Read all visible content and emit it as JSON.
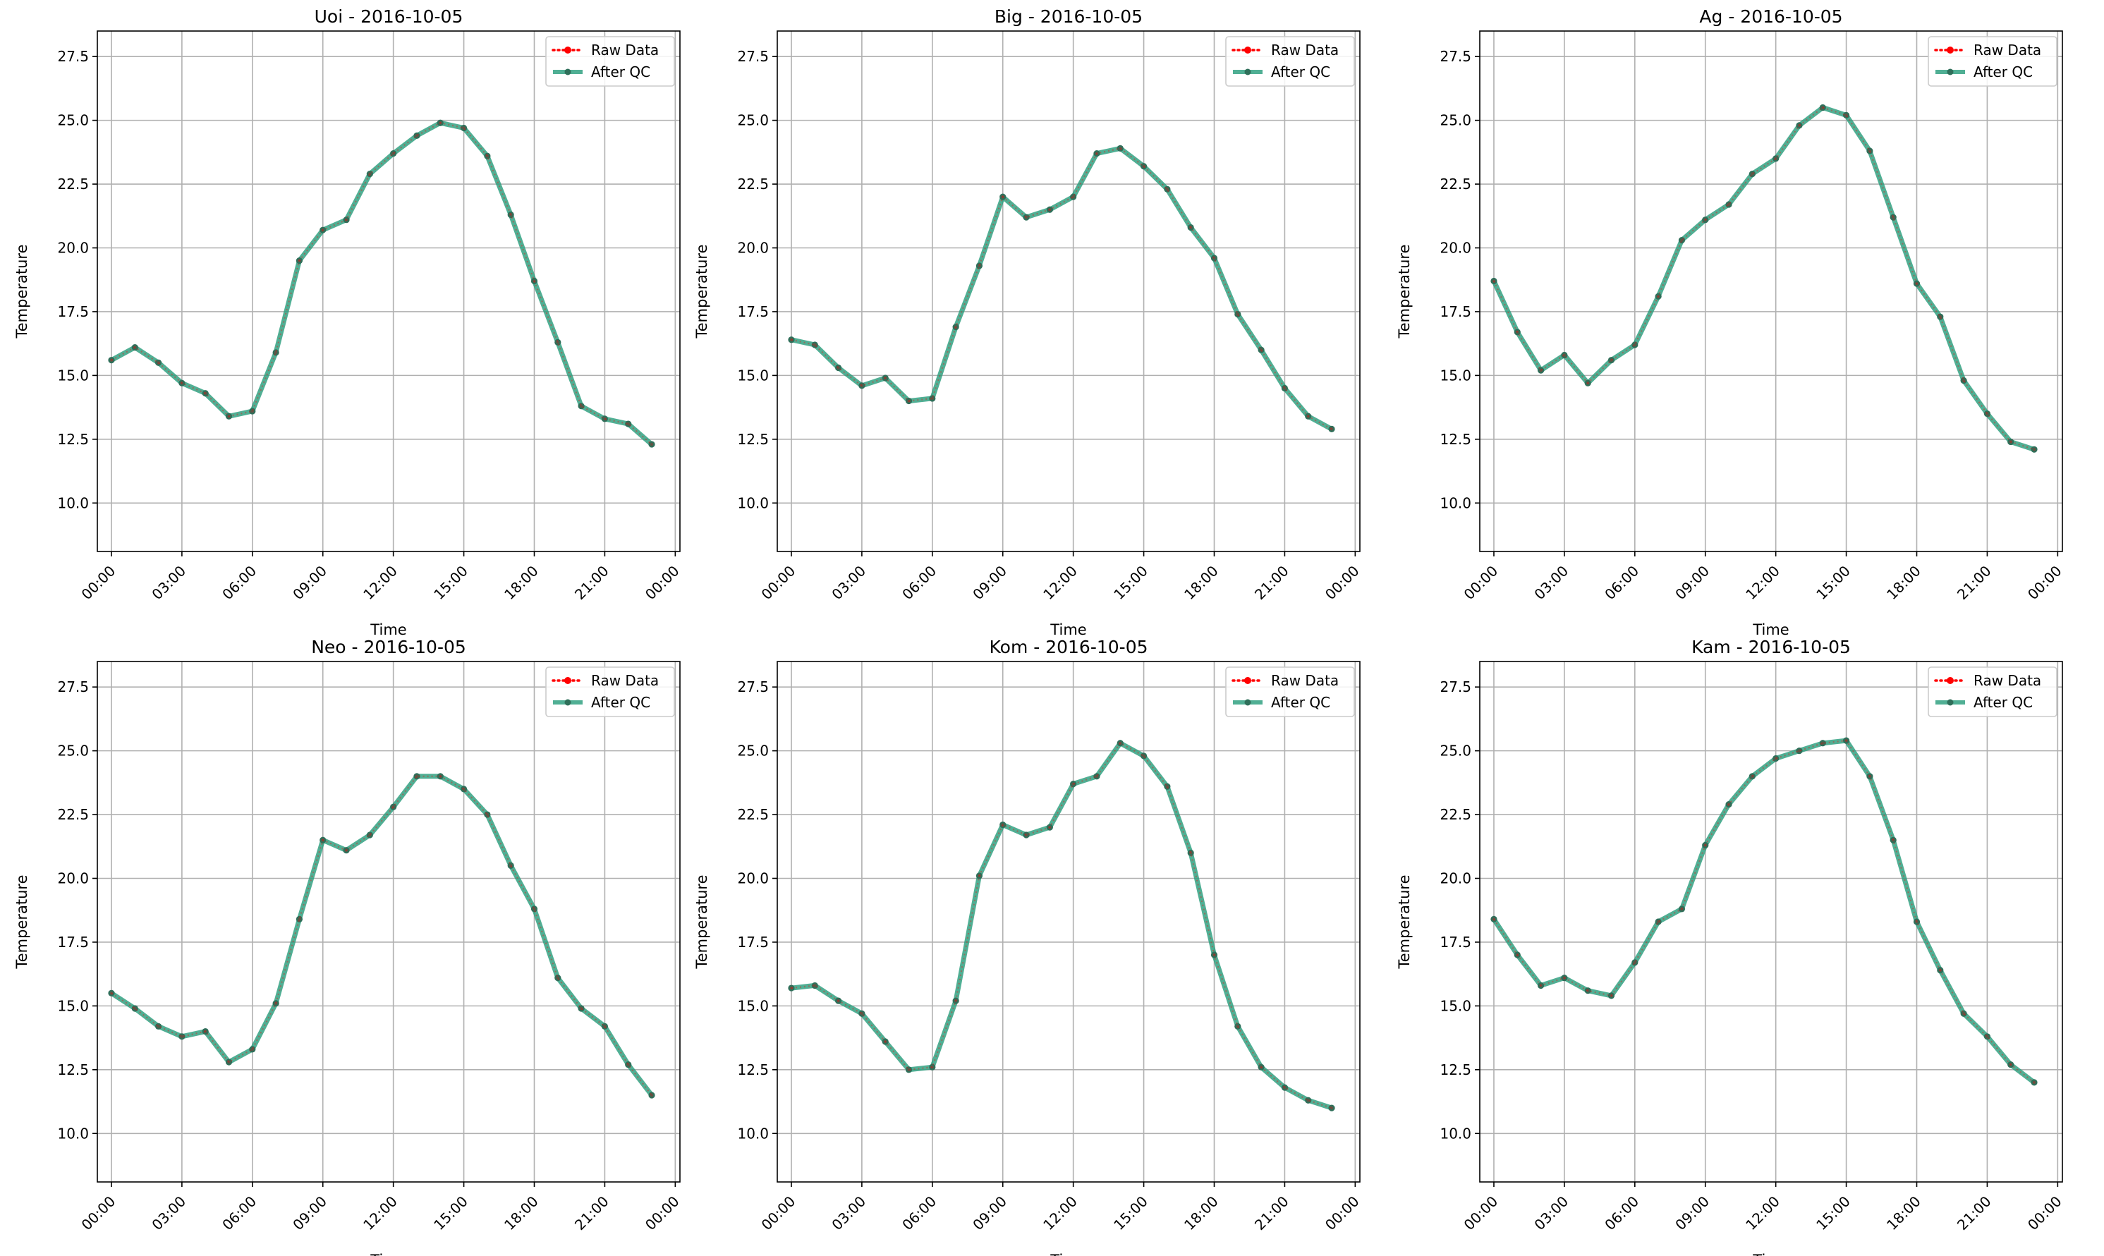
{
  "colors": {
    "raw": "#ff0000",
    "qc": "#2a9d7c",
    "qc_marker": "#2f6f5a",
    "grid": "#b0b0b0"
  },
  "chart_data": [
    {
      "type": "line",
      "title": "Uoi - 2016-10-05",
      "xlabel": "Time",
      "ylabel": "Temperature",
      "x": [
        "00:00",
        "01:00",
        "02:00",
        "03:00",
        "04:00",
        "05:00",
        "06:00",
        "07:00",
        "08:00",
        "09:00",
        "10:00",
        "11:00",
        "12:00",
        "13:00",
        "14:00",
        "15:00",
        "16:00",
        "17:00",
        "18:00",
        "19:00",
        "20:00",
        "21:00",
        "22:00",
        "23:00"
      ],
      "x_ticks": [
        "00:00",
        "03:00",
        "06:00",
        "09:00",
        "12:00",
        "15:00",
        "18:00",
        "21:00",
        "00:00"
      ],
      "y_ticks": [
        "10.0",
        "12.5",
        "15.0",
        "17.5",
        "20.0",
        "22.5",
        "25.0",
        "27.5"
      ],
      "xlim": [
        -0.6,
        24.2
      ],
      "ylim": [
        8.1,
        28.5
      ],
      "grid": true,
      "legend_position": "top-right",
      "series": [
        {
          "name": "Raw Data",
          "values": [
            15.6,
            16.1,
            15.5,
            14.7,
            14.3,
            13.4,
            13.6,
            15.9,
            19.5,
            20.7,
            21.1,
            22.9,
            23.7,
            24.4,
            24.9,
            24.7,
            23.6,
            21.3,
            18.7,
            16.3,
            13.8,
            13.3,
            13.1,
            12.3
          ]
        },
        {
          "name": "After QC",
          "values": [
            15.6,
            16.1,
            15.5,
            14.7,
            14.3,
            13.4,
            13.6,
            15.9,
            19.5,
            20.7,
            21.1,
            22.9,
            23.7,
            24.4,
            24.9,
            24.7,
            23.6,
            21.3,
            18.7,
            16.3,
            13.8,
            13.3,
            13.1,
            12.3
          ]
        }
      ]
    },
    {
      "type": "line",
      "title": "Big - 2016-10-05",
      "xlabel": "Time",
      "ylabel": "Temperature",
      "x": [
        "00:00",
        "01:00",
        "02:00",
        "03:00",
        "04:00",
        "05:00",
        "06:00",
        "07:00",
        "08:00",
        "09:00",
        "10:00",
        "11:00",
        "12:00",
        "13:00",
        "14:00",
        "15:00",
        "16:00",
        "17:00",
        "18:00",
        "19:00",
        "20:00",
        "21:00",
        "22:00",
        "23:00"
      ],
      "x_ticks": [
        "00:00",
        "03:00",
        "06:00",
        "09:00",
        "12:00",
        "15:00",
        "18:00",
        "21:00",
        "00:00"
      ],
      "y_ticks": [
        "10.0",
        "12.5",
        "15.0",
        "17.5",
        "20.0",
        "22.5",
        "25.0",
        "27.5"
      ],
      "xlim": [
        -0.6,
        24.2
      ],
      "ylim": [
        8.1,
        28.5
      ],
      "grid": true,
      "legend_position": "top-right",
      "series": [
        {
          "name": "Raw Data",
          "values": [
            16.4,
            16.2,
            15.3,
            14.6,
            14.9,
            14.0,
            14.1,
            16.9,
            19.3,
            22.0,
            21.2,
            21.5,
            22.0,
            23.7,
            23.9,
            23.2,
            22.3,
            20.8,
            19.6,
            17.4,
            16.0,
            14.5,
            13.4,
            12.9
          ]
        },
        {
          "name": "After QC",
          "values": [
            16.4,
            16.2,
            15.3,
            14.6,
            14.9,
            14.0,
            14.1,
            16.9,
            19.3,
            22.0,
            21.2,
            21.5,
            22.0,
            23.7,
            23.9,
            23.2,
            22.3,
            20.8,
            19.6,
            17.4,
            16.0,
            14.5,
            13.4,
            12.9
          ]
        }
      ]
    },
    {
      "type": "line",
      "title": "Ag - 2016-10-05",
      "xlabel": "Time",
      "ylabel": "Temperature",
      "x": [
        "00:00",
        "01:00",
        "02:00",
        "03:00",
        "04:00",
        "05:00",
        "06:00",
        "07:00",
        "08:00",
        "09:00",
        "10:00",
        "11:00",
        "12:00",
        "13:00",
        "14:00",
        "15:00",
        "16:00",
        "17:00",
        "18:00",
        "19:00",
        "20:00",
        "21:00",
        "22:00",
        "23:00"
      ],
      "x_ticks": [
        "00:00",
        "03:00",
        "06:00",
        "09:00",
        "12:00",
        "15:00",
        "18:00",
        "21:00",
        "00:00"
      ],
      "y_ticks": [
        "10.0",
        "12.5",
        "15.0",
        "17.5",
        "20.0",
        "22.5",
        "25.0",
        "27.5"
      ],
      "xlim": [
        -0.6,
        24.2
      ],
      "ylim": [
        8.1,
        28.5
      ],
      "grid": true,
      "legend_position": "top-right",
      "series": [
        {
          "name": "Raw Data",
          "values": [
            18.7,
            16.7,
            15.2,
            15.8,
            14.7,
            15.6,
            16.2,
            18.1,
            20.3,
            21.1,
            21.7,
            22.9,
            23.5,
            24.8,
            25.5,
            25.2,
            23.8,
            21.2,
            18.6,
            17.3,
            14.8,
            13.5,
            12.4,
            12.1
          ]
        },
        {
          "name": "After QC",
          "values": [
            18.7,
            16.7,
            15.2,
            15.8,
            14.7,
            15.6,
            16.2,
            18.1,
            20.3,
            21.1,
            21.7,
            22.9,
            23.5,
            24.8,
            25.5,
            25.2,
            23.8,
            21.2,
            18.6,
            17.3,
            14.8,
            13.5,
            12.4,
            12.1
          ]
        }
      ]
    },
    {
      "type": "line",
      "title": "Neo - 2016-10-05",
      "xlabel": "Time",
      "ylabel": "Temperature",
      "x": [
        "00:00",
        "01:00",
        "02:00",
        "03:00",
        "04:00",
        "05:00",
        "06:00",
        "07:00",
        "08:00",
        "09:00",
        "10:00",
        "11:00",
        "12:00",
        "13:00",
        "14:00",
        "15:00",
        "16:00",
        "17:00",
        "18:00",
        "19:00",
        "20:00",
        "21:00",
        "22:00",
        "23:00"
      ],
      "x_ticks": [
        "00:00",
        "03:00",
        "06:00",
        "09:00",
        "12:00",
        "15:00",
        "18:00",
        "21:00",
        "00:00"
      ],
      "y_ticks": [
        "10.0",
        "12.5",
        "15.0",
        "17.5",
        "20.0",
        "22.5",
        "25.0",
        "27.5"
      ],
      "xlim": [
        -0.6,
        24.2
      ],
      "ylim": [
        8.1,
        28.5
      ],
      "grid": true,
      "legend_position": "top-right",
      "series": [
        {
          "name": "Raw Data",
          "values": [
            15.5,
            14.9,
            14.2,
            13.8,
            14.0,
            12.8,
            13.3,
            15.1,
            18.4,
            21.5,
            21.1,
            21.7,
            22.8,
            24.0,
            24.0,
            23.5,
            22.5,
            20.5,
            18.8,
            16.1,
            14.9,
            14.2,
            12.7,
            11.5
          ]
        },
        {
          "name": "After QC",
          "values": [
            15.5,
            14.9,
            14.2,
            13.8,
            14.0,
            12.8,
            13.3,
            15.1,
            18.4,
            21.5,
            21.1,
            21.7,
            22.8,
            24.0,
            24.0,
            23.5,
            22.5,
            20.5,
            18.8,
            16.1,
            14.9,
            14.2,
            12.7,
            11.5
          ]
        }
      ]
    },
    {
      "type": "line",
      "title": "Kom - 2016-10-05",
      "xlabel": "Time",
      "ylabel": "Temperature",
      "x": [
        "00:00",
        "01:00",
        "02:00",
        "03:00",
        "04:00",
        "05:00",
        "06:00",
        "07:00",
        "08:00",
        "09:00",
        "10:00",
        "11:00",
        "12:00",
        "13:00",
        "14:00",
        "15:00",
        "16:00",
        "17:00",
        "18:00",
        "19:00",
        "20:00",
        "21:00",
        "22:00",
        "23:00"
      ],
      "x_ticks": [
        "00:00",
        "03:00",
        "06:00",
        "09:00",
        "12:00",
        "15:00",
        "18:00",
        "21:00",
        "00:00"
      ],
      "y_ticks": [
        "10.0",
        "12.5",
        "15.0",
        "17.5",
        "20.0",
        "22.5",
        "25.0",
        "27.5"
      ],
      "xlim": [
        -0.6,
        24.2
      ],
      "ylim": [
        8.1,
        28.5
      ],
      "grid": true,
      "legend_position": "top-right",
      "series": [
        {
          "name": "Raw Data",
          "values": [
            15.7,
            15.8,
            15.2,
            14.7,
            13.6,
            12.5,
            12.6,
            15.2,
            20.1,
            22.1,
            21.7,
            22.0,
            23.7,
            24.0,
            25.3,
            24.8,
            23.6,
            21.0,
            17.0,
            14.2,
            12.6,
            11.8,
            11.3,
            11.0
          ]
        },
        {
          "name": "After QC",
          "values": [
            15.7,
            15.8,
            15.2,
            14.7,
            13.6,
            12.5,
            12.6,
            15.2,
            20.1,
            22.1,
            21.7,
            22.0,
            23.7,
            24.0,
            25.3,
            24.8,
            23.6,
            21.0,
            17.0,
            14.2,
            12.6,
            11.8,
            11.3,
            11.0
          ]
        }
      ]
    },
    {
      "type": "line",
      "title": "Kam - 2016-10-05",
      "xlabel": "Time",
      "ylabel": "Temperature",
      "x": [
        "00:00",
        "01:00",
        "02:00",
        "03:00",
        "04:00",
        "05:00",
        "06:00",
        "07:00",
        "08:00",
        "09:00",
        "10:00",
        "11:00",
        "12:00",
        "13:00",
        "14:00",
        "15:00",
        "16:00",
        "17:00",
        "18:00",
        "19:00",
        "20:00",
        "21:00",
        "22:00",
        "23:00"
      ],
      "x_ticks": [
        "00:00",
        "03:00",
        "06:00",
        "09:00",
        "12:00",
        "15:00",
        "18:00",
        "21:00",
        "00:00"
      ],
      "y_ticks": [
        "10.0",
        "12.5",
        "15.0",
        "17.5",
        "20.0",
        "22.5",
        "25.0",
        "27.5"
      ],
      "xlim": [
        -0.6,
        24.2
      ],
      "ylim": [
        8.1,
        28.5
      ],
      "grid": true,
      "legend_position": "top-right",
      "series": [
        {
          "name": "Raw Data",
          "values": [
            18.4,
            17.0,
            15.8,
            16.1,
            15.6,
            15.4,
            16.7,
            18.3,
            18.8,
            21.3,
            22.9,
            24.0,
            24.7,
            25.0,
            25.3,
            25.4,
            24.0,
            21.5,
            18.3,
            16.4,
            14.7,
            13.8,
            12.7,
            12.0
          ]
        },
        {
          "name": "After QC",
          "values": [
            18.4,
            17.0,
            15.8,
            16.1,
            15.6,
            15.4,
            16.7,
            18.3,
            18.8,
            21.3,
            22.9,
            24.0,
            24.7,
            25.0,
            25.3,
            25.4,
            24.0,
            21.5,
            18.3,
            16.4,
            14.7,
            13.8,
            12.7,
            12.0
          ]
        }
      ]
    }
  ]
}
